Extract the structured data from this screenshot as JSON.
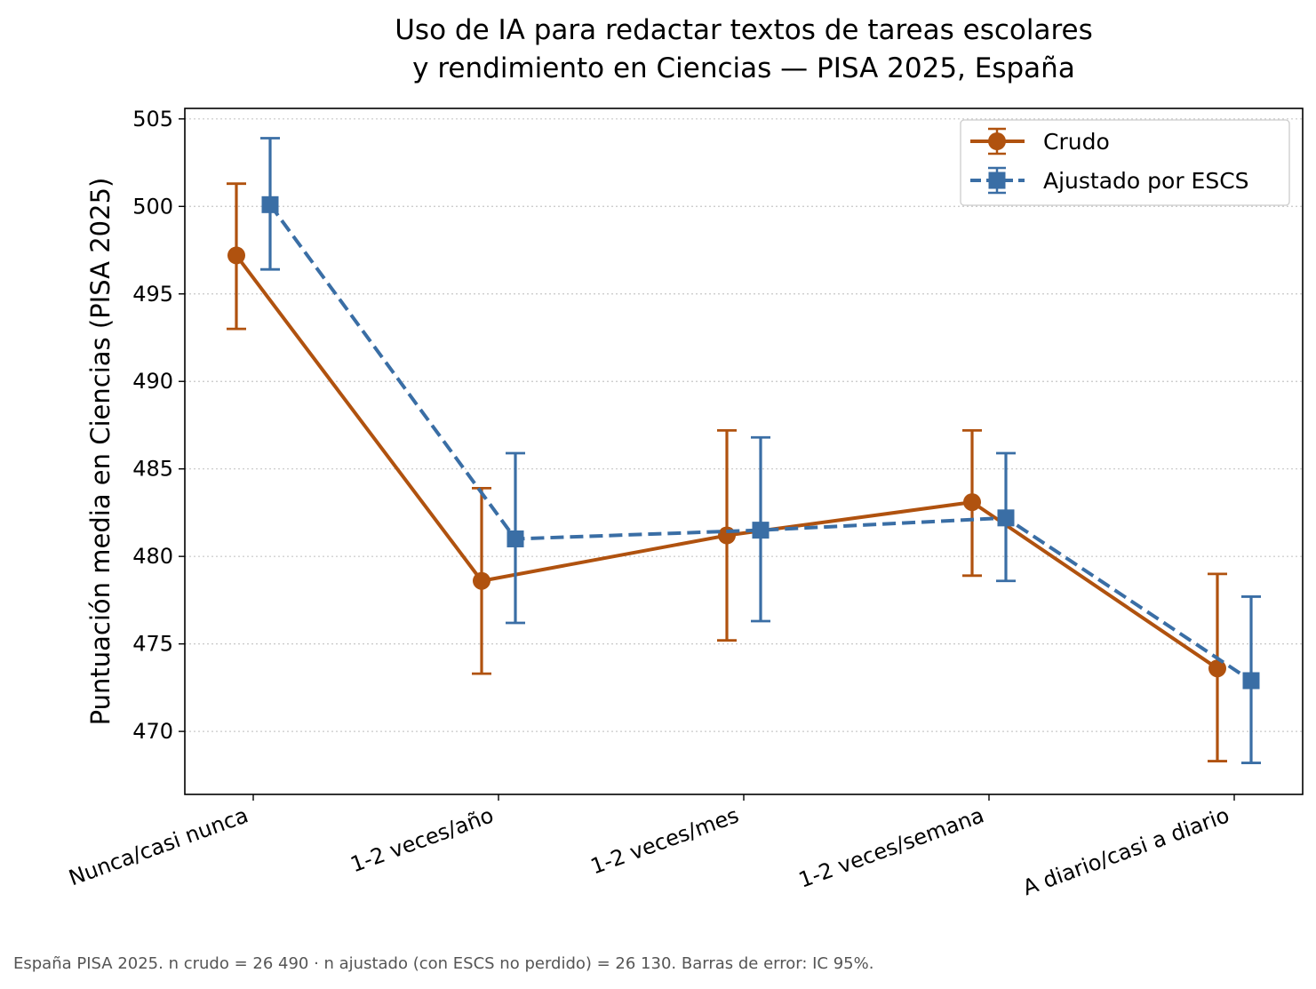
{
  "chart_data": {
    "type": "line",
    "title_lines": [
      "Uso de IA para redactar textos de tareas escolares",
      "y rendimiento en Ciencias — PISA 2025, España"
    ],
    "xlabel": "",
    "ylabel": "Puntuación media en Ciencias (PISA 2025)",
    "categories": [
      "Nunca/casi nunca",
      "1-2 veces/año",
      "1-2 veces/mes",
      "1-2 veces/semana",
      "A diario/casi a diario"
    ],
    "ylim": [
      466.4,
      505.6
    ],
    "yticks": [
      470,
      475,
      480,
      485,
      490,
      495,
      500,
      505
    ],
    "grid": "horizontal dotted",
    "legend_position": "top-right",
    "series": [
      {
        "name": "Crudo",
        "color": "#b0520f",
        "linestyle": "solid",
        "marker": "circle",
        "values": [
          497.2,
          478.6,
          481.2,
          483.1,
          473.6
        ],
        "ci_low": [
          493.0,
          473.3,
          475.2,
          478.9,
          468.3
        ],
        "ci_high": [
          501.3,
          483.9,
          487.2,
          487.2,
          479.0
        ]
      },
      {
        "name": "Ajustado por ESCS",
        "color": "#3a6ea5",
        "linestyle": "dashed",
        "marker": "square",
        "values": [
          500.1,
          481.0,
          481.5,
          482.2,
          472.9
        ],
        "ci_low": [
          496.4,
          476.2,
          476.3,
          478.6,
          468.2
        ],
        "ci_high": [
          503.9,
          485.9,
          486.8,
          485.9,
          477.7
        ]
      }
    ]
  },
  "footnote": "España  PISA 2025. n crudo = 26 490 · n ajustado (con ESCS no perdido) = 26 130. Barras de error: IC 95%."
}
